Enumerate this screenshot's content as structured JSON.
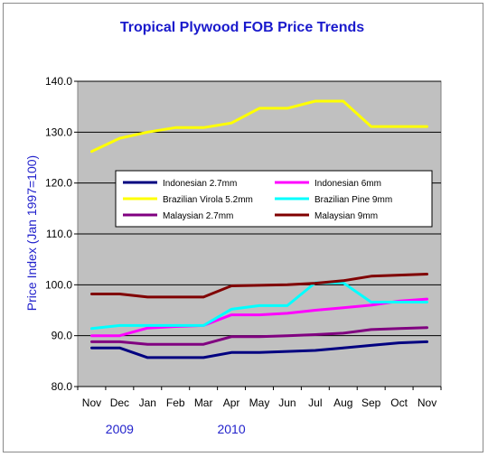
{
  "chart_data": {
    "type": "line",
    "title": "Tropical Plywood FOB Price Trends",
    "ylabel": "Price Index (Jan 1997=100)",
    "xlabel": "",
    "ylim": [
      80,
      140
    ],
    "yticks": [
      "80.0",
      "90.0",
      "100.0",
      "110.0",
      "120.0",
      "130.0",
      "140.0"
    ],
    "categories": [
      "Nov",
      "Dec",
      "Jan",
      "Feb",
      "Mar",
      "Apr",
      "May",
      "Jun",
      "Jul",
      "Aug",
      "Sep",
      "Oct",
      "Nov"
    ],
    "year_labels": [
      {
        "label": "2009",
        "category_index": 1
      },
      {
        "label": "2010",
        "category_index": 5
      }
    ],
    "grid": true,
    "legend_placement": "inside-middle",
    "series": [
      {
        "name": "Indonesian 2.7mm",
        "color": "#000080",
        "values": [
          87.6,
          87.6,
          85.7,
          85.7,
          85.7,
          86.7,
          86.7,
          86.9,
          87.1,
          87.6,
          88.1,
          88.6,
          88.8
        ]
      },
      {
        "name": "Indonesian 6mm",
        "color": "#ff00ff",
        "values": [
          90.0,
          90.0,
          91.5,
          91.8,
          92.0,
          94.1,
          94.1,
          94.4,
          95.0,
          95.5,
          96.0,
          96.8,
          97.2
        ]
      },
      {
        "name": "Brazilian Virola 5.2mm",
        "color": "#ffff00",
        "values": [
          126.2,
          128.8,
          130.0,
          130.9,
          130.9,
          131.8,
          134.7,
          134.7,
          136.1,
          136.1,
          131.1,
          131.1,
          131.1
        ]
      },
      {
        "name": "Brazilian Pine 9mm",
        "color": "#00ffff",
        "values": [
          91.4,
          92.0,
          92.0,
          92.0,
          92.0,
          95.2,
          95.9,
          95.9,
          100.4,
          100.4,
          96.6,
          96.6,
          96.6
        ]
      },
      {
        "name": "Malaysian 2.7mm",
        "color": "#800080",
        "values": [
          88.8,
          88.8,
          88.3,
          88.3,
          88.3,
          89.8,
          89.8,
          90.0,
          90.2,
          90.5,
          91.2,
          91.4,
          91.6
        ]
      },
      {
        "name": "Malaysian 9mm",
        "color": "#800000",
        "values": [
          98.2,
          98.2,
          97.6,
          97.6,
          97.6,
          99.8,
          99.9,
          100.0,
          100.3,
          100.8,
          101.7,
          101.9,
          102.1
        ]
      }
    ]
  }
}
